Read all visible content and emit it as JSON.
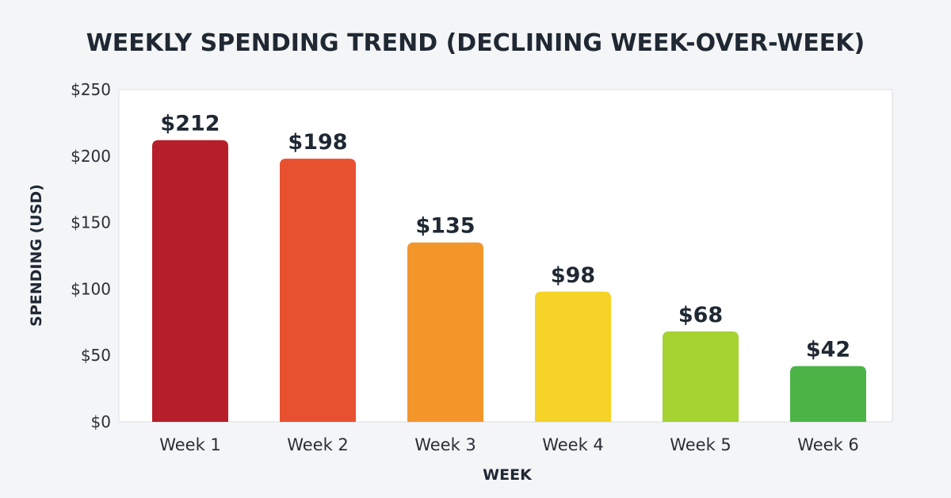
{
  "chart_data": {
    "type": "bar",
    "title": "WEEKLY SPENDING TREND (DECLINING WEEK-OVER-WEEK)",
    "xlabel": "WEEK",
    "ylabel": "SPENDING (USD)",
    "categories": [
      "Week 1",
      "Week 2",
      "Week 3",
      "Week 4",
      "Week 5",
      "Week 6"
    ],
    "values": [
      212,
      198,
      135,
      98,
      68,
      42
    ],
    "value_labels": [
      "$212",
      "$198",
      "$135",
      "$98",
      "$68",
      "$42"
    ],
    "bar_colors": [
      "#b61e2a",
      "#e8512f",
      "#f3962a",
      "#f5d327",
      "#a6d232",
      "#4cb447"
    ],
    "ylim": [
      0,
      250
    ],
    "yticks": [
      0,
      50,
      100,
      150,
      200,
      250
    ],
    "ytick_labels": [
      "$0",
      "$50",
      "$100",
      "$150",
      "$200",
      "$250"
    ],
    "grid": false,
    "legend": "none"
  }
}
